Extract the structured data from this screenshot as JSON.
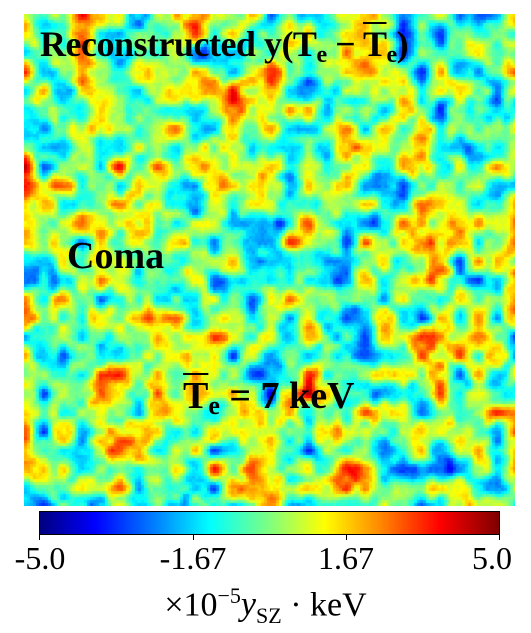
{
  "map": {
    "title": {
      "prefix": "Reconstructed y(T",
      "sub1": "e",
      "minus": " − ",
      "tbar": "T",
      "sub2": "e",
      "suffix": ")"
    },
    "cluster_label": "Coma",
    "temperature": {
      "symbol": "T",
      "sub": "e",
      "value_text": " = 7 keV"
    },
    "colormap": "jet",
    "colors": [
      "#00007f",
      "#0000ff",
      "#007fff",
      "#00ffff",
      "#7fff7f",
      "#ffff00",
      "#ff7f00",
      "#ff0000",
      "#7f0000"
    ]
  },
  "colorbar": {
    "min": -5.0,
    "max": 5.0,
    "ticks": [
      "-5.0",
      "-1.67",
      "1.67",
      "5.0"
    ],
    "tick_values": [
      -5.0,
      -1.67,
      1.67,
      5.0
    ],
    "label": {
      "times": "×10",
      "exp": "−5",
      "y": "y",
      "ysub": "SZ",
      "unit": " · keV"
    }
  }
}
